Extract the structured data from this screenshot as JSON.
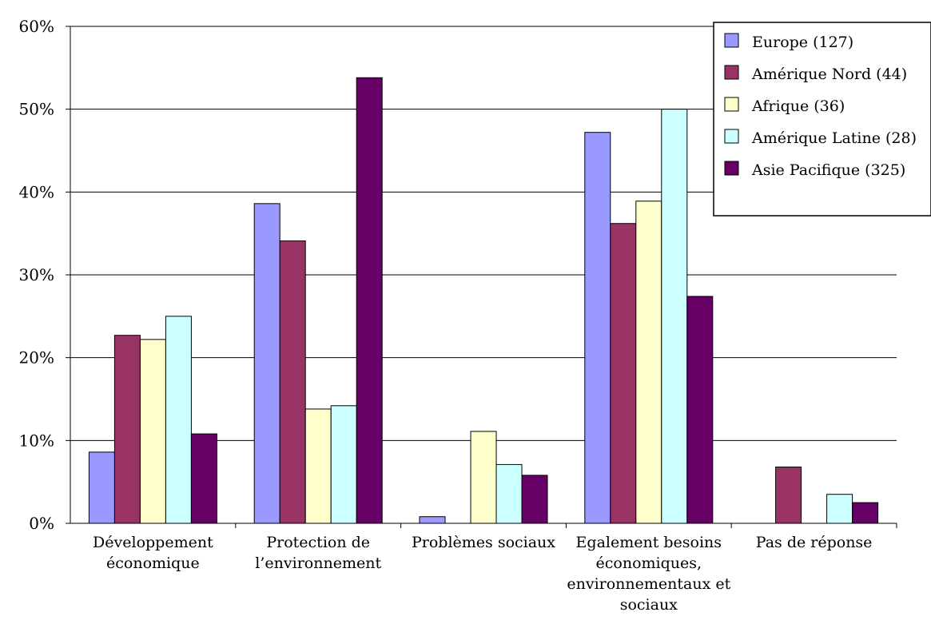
{
  "chart_data": {
    "type": "bar",
    "title": "",
    "xlabel": "",
    "ylabel": "",
    "ylim": [
      0,
      60
    ],
    "y_ticks": [
      "0%",
      "10%",
      "20%",
      "30%",
      "40%",
      "50%",
      "60%"
    ],
    "y_tick_values": [
      0,
      10,
      20,
      30,
      40,
      50,
      60
    ],
    "grid": true,
    "legend_position": "top-right",
    "categories": [
      [
        "Développement",
        "économique"
      ],
      [
        "Protection de",
        "l’environnement"
      ],
      [
        "Problèmes sociaux"
      ],
      [
        "Egalement besoins",
        "économiques,",
        "environnementaux et",
        "sociaux"
      ],
      [
        "Pas de réponse"
      ]
    ],
    "series": [
      {
        "name": "Europe (127)",
        "color": "#9999ff",
        "values": [
          8.6,
          38.6,
          0.8,
          47.2,
          0
        ]
      },
      {
        "name": "Amérique Nord (44)",
        "color": "#993366",
        "values": [
          22.7,
          34.1,
          0,
          36.2,
          6.8
        ]
      },
      {
        "name": "Afrique (36)",
        "color": "#ffffcc",
        "values": [
          22.2,
          13.8,
          11.1,
          38.9,
          0
        ]
      },
      {
        "name": "Amérique Latine (28)",
        "color": "#ccffff",
        "values": [
          25.0,
          14.2,
          7.1,
          50.0,
          3.5
        ]
      },
      {
        "name": "Asie Pacifique (325)",
        "color": "#660066",
        "values": [
          10.8,
          53.8,
          5.8,
          27.4,
          2.5
        ]
      }
    ]
  }
}
